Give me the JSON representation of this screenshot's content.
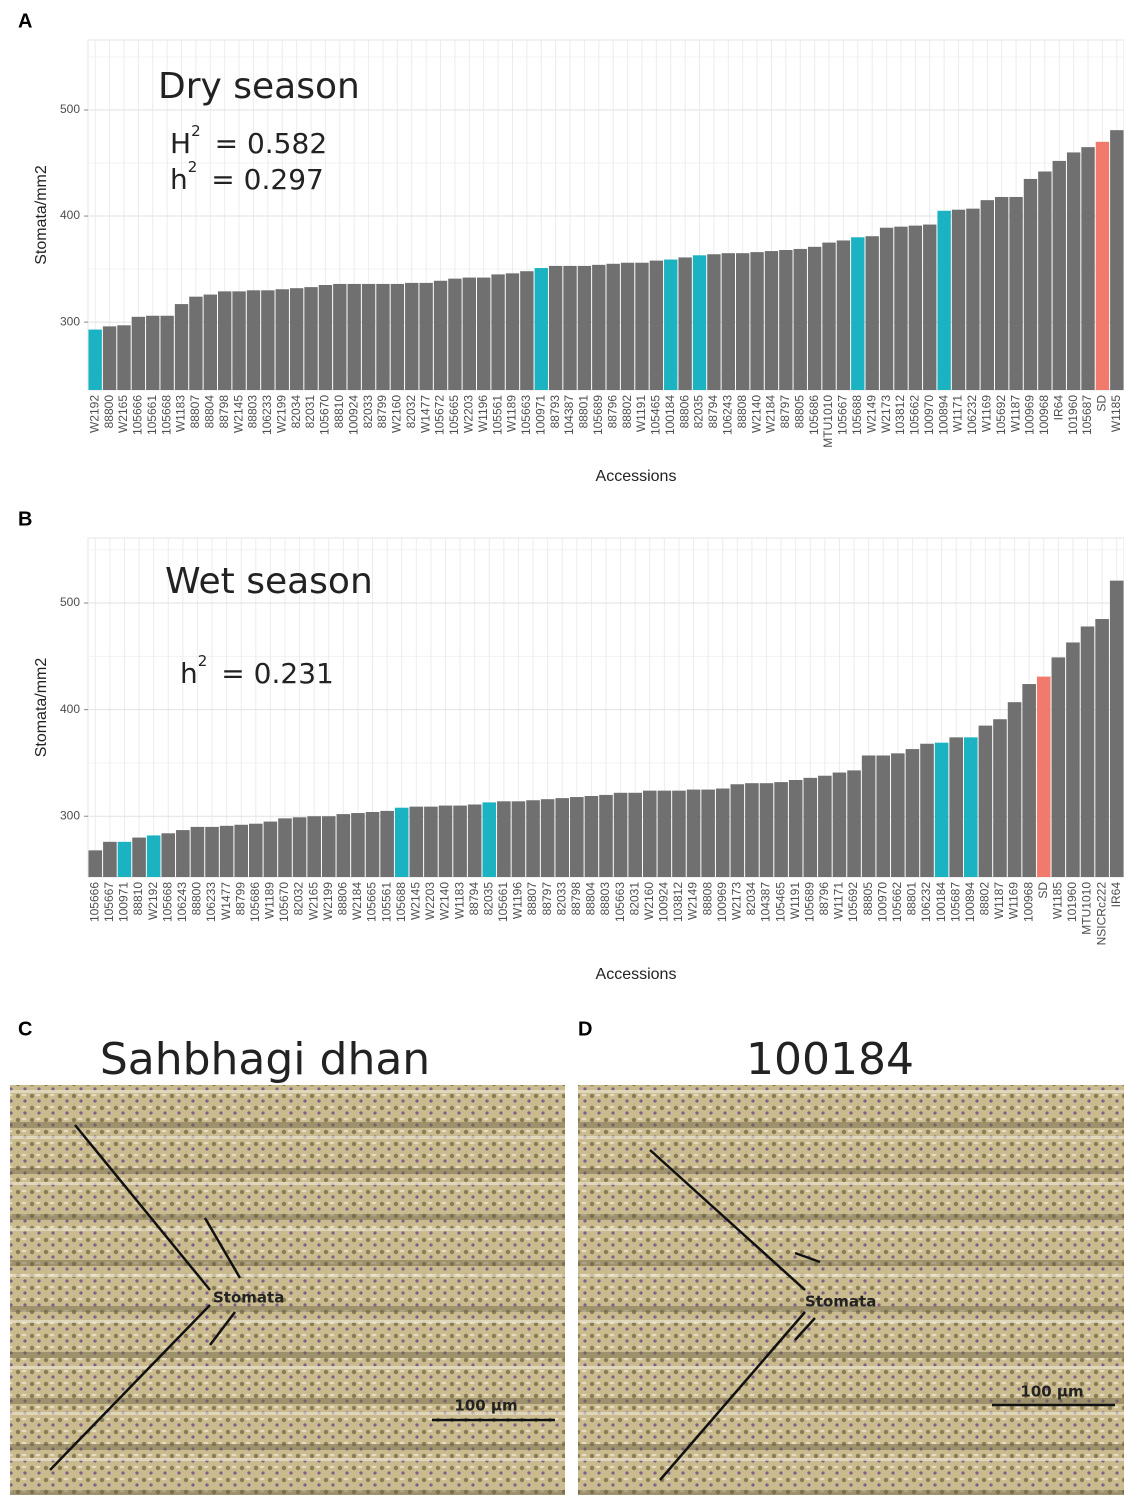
{
  "chart_data": [
    {
      "type": "bar",
      "panel_label": "A",
      "title": "Dry season",
      "annotations": [
        {
          "symbol": "H",
          "sup": "2",
          "text": "= 0.582"
        },
        {
          "symbol": "h",
          "sup": "2",
          "text": "= 0.297"
        }
      ],
      "x_label": "Accessions",
      "y_label": "Stomata/mm2",
      "categories": [
        "W2192",
        "88800",
        "W2165",
        "105666",
        "105661",
        "105668",
        "W1183",
        "88807",
        "88804",
        "88798",
        "W2145",
        "88803",
        "106233",
        "W2199",
        "82034",
        "82031",
        "105670",
        "88810",
        "100924",
        "82033",
        "88799",
        "W2160",
        "82032",
        "W1477",
        "105672",
        "105665",
        "W2203",
        "W1196",
        "105561",
        "W1189",
        "105663",
        "100971",
        "88793",
        "104387",
        "88801",
        "105689",
        "88796",
        "88802",
        "W1191",
        "105465",
        "100184",
        "88806",
        "82035",
        "88794",
        "106243",
        "88808",
        "W2140",
        "W2184",
        "88797",
        "88805",
        "105686",
        "MTU1010",
        "105667",
        "105688",
        "W2149",
        "W2173",
        "103812",
        "105662",
        "100970",
        "100894",
        "W1171",
        "106232",
        "W1169",
        "105692",
        "W1187",
        "100969",
        "100968",
        "IR64",
        "101960",
        "105687",
        "SD",
        "W1185"
      ],
      "values": [
        293,
        296,
        297,
        305,
        306,
        306,
        317,
        324,
        326,
        329,
        329,
        330,
        330,
        331,
        332,
        333,
        335,
        336,
        336,
        336,
        336,
        336,
        337,
        337,
        339,
        341,
        342,
        342,
        345,
        346,
        348,
        351,
        353,
        353,
        353,
        354,
        355,
        356,
        356,
        358,
        359,
        361,
        363,
        364,
        365,
        365,
        366,
        367,
        368,
        369,
        371,
        375,
        377,
        380,
        381,
        389,
        390,
        391,
        392,
        405,
        406,
        407,
        415,
        418,
        418,
        435,
        442,
        452,
        460,
        465,
        470,
        481
      ],
      "colors": [
        "#1bb3c1",
        "#707070",
        "#707070",
        "#707070",
        "#707070",
        "#707070",
        "#707070",
        "#707070",
        "#707070",
        "#707070",
        "#707070",
        "#707070",
        "#707070",
        "#707070",
        "#707070",
        "#707070",
        "#707070",
        "#707070",
        "#707070",
        "#707070",
        "#707070",
        "#707070",
        "#707070",
        "#707070",
        "#707070",
        "#707070",
        "#707070",
        "#707070",
        "#707070",
        "#707070",
        "#707070",
        "#1bb3c1",
        "#707070",
        "#707070",
        "#707070",
        "#707070",
        "#707070",
        "#707070",
        "#707070",
        "#707070",
        "#1bb3c1",
        "#707070",
        "#1bb3c1",
        "#707070",
        "#707070",
        "#707070",
        "#707070",
        "#707070",
        "#707070",
        "#707070",
        "#707070",
        "#707070",
        "#707070",
        "#1bb3c1",
        "#707070",
        "#707070",
        "#707070",
        "#707070",
        "#707070",
        "#1bb3c1",
        "#707070",
        "#707070",
        "#707070",
        "#707070",
        "#707070",
        "#707070",
        "#707070",
        "#707070",
        "#707070",
        "#707070",
        "#f27a6c",
        "#707070"
      ],
      "ylim": [
        236,
        566
      ],
      "yticks": [
        300,
        400,
        500
      ],
      "grid": true
    },
    {
      "type": "bar",
      "panel_label": "B",
      "title": "Wet season",
      "annotations": [
        {
          "symbol": "h",
          "sup": "2",
          "text": "= 0.231"
        }
      ],
      "x_label": "Accessions",
      "y_label": "Stomata/mm2",
      "categories": [
        "105666",
        "105667",
        "100971",
        "88810",
        "W2192",
        "105668",
        "106243",
        "88800",
        "106233",
        "W1477",
        "88799",
        "105686",
        "W1189",
        "105670",
        "82032",
        "W2165",
        "W2199",
        "88806",
        "W2184",
        "105665",
        "105561",
        "105688",
        "W2145",
        "W2203",
        "W2140",
        "W1183",
        "88794",
        "82035",
        "105661",
        "W1196",
        "88807",
        "88797",
        "82033",
        "88798",
        "88804",
        "88803",
        "105663",
        "82031",
        "W2160",
        "100924",
        "103812",
        "W2149",
        "88808",
        "100969",
        "W2173",
        "82034",
        "104387",
        "105465",
        "W1191",
        "105689",
        "88796",
        "W1171",
        "105692",
        "88805",
        "100970",
        "105662",
        "88801",
        "106232",
        "100184",
        "105687",
        "100894",
        "88802",
        "W1187",
        "W1169",
        "100968",
        "SD",
        "W1185",
        "101960",
        "MTU1010",
        "NSICRc222",
        "IR64"
      ],
      "values": [
        268,
        276,
        276,
        280,
        282,
        284,
        287,
        290,
        290,
        291,
        292,
        293,
        295,
        298,
        299,
        300,
        300,
        302,
        303,
        304,
        305,
        308,
        309,
        309,
        310,
        310,
        311,
        313,
        314,
        314,
        315,
        316,
        317,
        318,
        319,
        320,
        322,
        322,
        324,
        324,
        324,
        325,
        325,
        326,
        330,
        331,
        331,
        332,
        334,
        336,
        338,
        341,
        343,
        357,
        357,
        359,
        363,
        368,
        369,
        374,
        374,
        385,
        391,
        407,
        424,
        431,
        449,
        463,
        478,
        485,
        521
      ],
      "colors": [
        "#707070",
        "#707070",
        "#1bb3c1",
        "#707070",
        "#1bb3c1",
        "#707070",
        "#707070",
        "#707070",
        "#707070",
        "#707070",
        "#707070",
        "#707070",
        "#707070",
        "#707070",
        "#707070",
        "#707070",
        "#707070",
        "#707070",
        "#707070",
        "#707070",
        "#707070",
        "#1bb3c1",
        "#707070",
        "#707070",
        "#707070",
        "#707070",
        "#707070",
        "#1bb3c1",
        "#707070",
        "#707070",
        "#707070",
        "#707070",
        "#707070",
        "#707070",
        "#707070",
        "#707070",
        "#707070",
        "#707070",
        "#707070",
        "#707070",
        "#707070",
        "#707070",
        "#707070",
        "#707070",
        "#707070",
        "#707070",
        "#707070",
        "#707070",
        "#707070",
        "#707070",
        "#707070",
        "#707070",
        "#707070",
        "#707070",
        "#707070",
        "#707070",
        "#707070",
        "#707070",
        "#1bb3c1",
        "#707070",
        "#1bb3c1",
        "#707070",
        "#707070",
        "#707070",
        "#707070",
        "#f27a6c",
        "#707070",
        "#707070",
        "#707070",
        "#707070",
        "#707070"
      ],
      "ylim": [
        243,
        561
      ],
      "yticks": [
        300,
        400,
        500
      ],
      "grid": true
    }
  ],
  "panels": [
    {
      "label": "C",
      "title": "Sahbhagi dhan",
      "annotation": "Stomata",
      "scale_bar": "100 µm"
    },
    {
      "label": "D",
      "title": "100184",
      "annotation": "Stomata",
      "scale_bar": "100 µm"
    }
  ]
}
